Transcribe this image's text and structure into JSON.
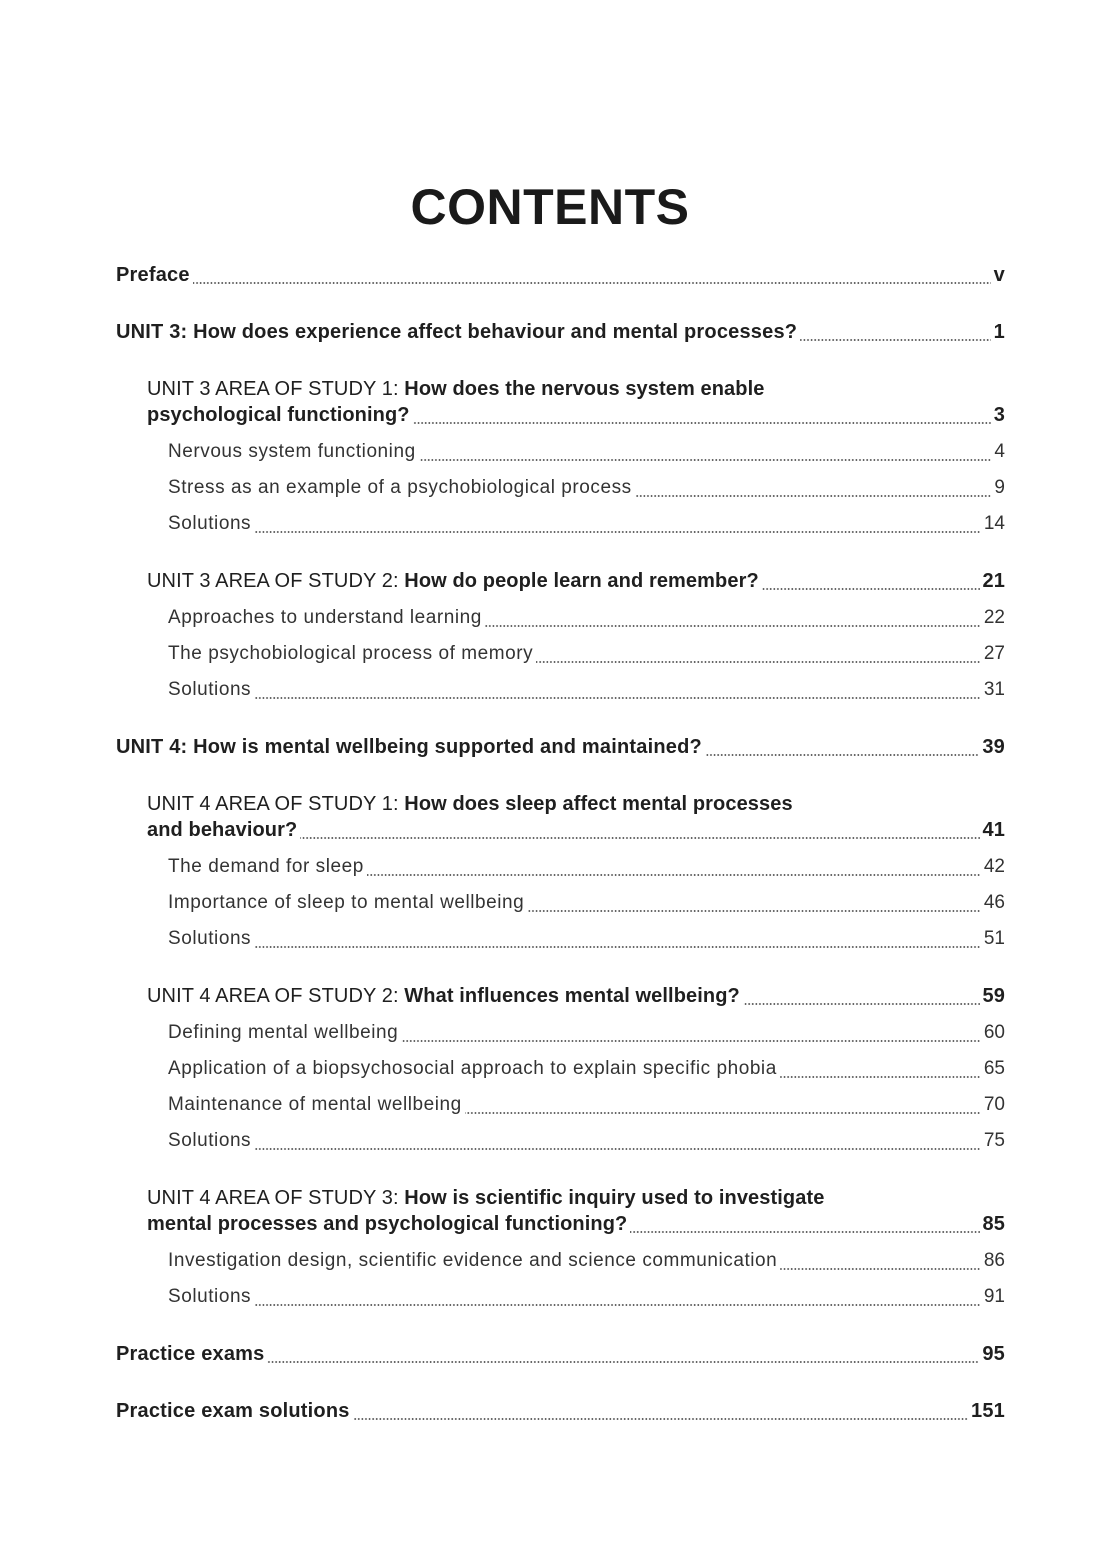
{
  "title": "CONTENTS",
  "entries": [
    {
      "level": 0,
      "lines": [
        "Preface"
      ],
      "page": "v"
    },
    {
      "level": 0,
      "lines": [
        "UNIT 3: How does experience affect behaviour and mental processes?"
      ],
      "page": "1"
    },
    {
      "level": 1,
      "prefix": "UNIT 3 AREA OF STUDY 1:",
      "lines": [
        " How does the nervous system enable",
        "psychological functioning?"
      ],
      "page": "3"
    },
    {
      "level": 2,
      "lines": [
        "Nervous system functioning"
      ],
      "page": "4"
    },
    {
      "level": 2,
      "lines": [
        "Stress as an example of a psychobiological process"
      ],
      "page": "9"
    },
    {
      "level": 2,
      "lines": [
        "Solutions"
      ],
      "page": "14"
    },
    {
      "level": 1,
      "prefix": "UNIT 3 AREA OF STUDY 2:",
      "lines": [
        " How do people learn and remember?"
      ],
      "page": "21"
    },
    {
      "level": 2,
      "lines": [
        "Approaches to understand learning"
      ],
      "page": "22"
    },
    {
      "level": 2,
      "lines": [
        "The psychobiological process of memory"
      ],
      "page": "27"
    },
    {
      "level": 2,
      "lines": [
        "Solutions"
      ],
      "page": "31"
    },
    {
      "level": 0,
      "lines": [
        "UNIT 4: How is mental wellbeing supported and maintained?"
      ],
      "page": "39"
    },
    {
      "level": 1,
      "prefix": "UNIT 4 AREA OF STUDY 1:",
      "lines": [
        " How does sleep affect mental processes",
        "and behaviour?"
      ],
      "page": "41"
    },
    {
      "level": 2,
      "lines": [
        "The demand for sleep"
      ],
      "page": "42"
    },
    {
      "level": 2,
      "lines": [
        "Importance of sleep to mental wellbeing"
      ],
      "page": "46"
    },
    {
      "level": 2,
      "lines": [
        "Solutions"
      ],
      "page": "51"
    },
    {
      "level": 1,
      "prefix": "UNIT 4 AREA OF STUDY 2:",
      "lines": [
        " What influences mental wellbeing?"
      ],
      "page": "59"
    },
    {
      "level": 2,
      "lines": [
        "Defining mental wellbeing"
      ],
      "page": "60"
    },
    {
      "level": 2,
      "lines": [
        "Application of a biopsychosocial approach to explain specific phobia"
      ],
      "page": "65"
    },
    {
      "level": 2,
      "lines": [
        "Maintenance of mental wellbeing"
      ],
      "page": "70"
    },
    {
      "level": 2,
      "lines": [
        "Solutions"
      ],
      "page": "75"
    },
    {
      "level": 1,
      "prefix": "UNIT 4 AREA OF STUDY 3:",
      "lines": [
        " How is scientific inquiry used to investigate",
        "mental processes and psychological functioning?"
      ],
      "page": "85"
    },
    {
      "level": 2,
      "lines": [
        "Investigation design, scientific evidence and science communication"
      ],
      "page": "86"
    },
    {
      "level": 2,
      "lines": [
        "Solutions"
      ],
      "page": "91"
    },
    {
      "level": 0,
      "lines": [
        "Practice exams"
      ],
      "page": "95"
    },
    {
      "level": 0,
      "lines": [
        "Practice exam solutions"
      ],
      "page": "151"
    }
  ]
}
